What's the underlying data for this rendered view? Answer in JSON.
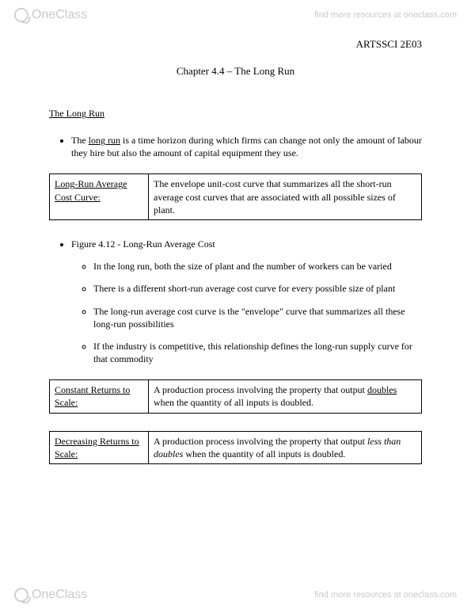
{
  "watermark": {
    "brand": "OneClass",
    "link_text": "find more resources at oneclass.com"
  },
  "course_code": "ARTSSCI 2E03",
  "chapter_title": "Chapter 4.4 – The Long Run",
  "section_heading": "The Long Run",
  "bullets": {
    "b1_pre": "The ",
    "b1_u": "long run",
    "b1_post": " is a time horizon during which firms can change not only the amount of labour they hire but also the amount of capital equipment they use."
  },
  "def1": {
    "term": "Long-Run Average Cost Curve",
    "term_suffix": ":",
    "desc": "The envelope unit-cost curve that summarizes all the short-run average cost curves that are associated with all possible sizes of plant."
  },
  "fig_bullet": "Figure 4.12 - Long-Run Average Cost",
  "sub": {
    "s1": "In the long run, both the size of plant and the number of workers can be varied",
    "s2": "There is a different short-run average cost curve for every possible size of plant",
    "s3": "The long-run average cost curve is the \"envelope\" curve that summarizes all these long-run possibilities",
    "s4": "If the industry is competitive, this relationship defines the long-run supply curve for that commodity"
  },
  "def2": {
    "term": "Constant Returns to Scale",
    "term_suffix": ":",
    "desc_pre": "A production process involving the property that output ",
    "desc_u": "doubles",
    "desc_post": " when the quantity of all inputs is doubled."
  },
  "def3": {
    "term": "Decreasing Returns to Scale",
    "term_suffix": ":",
    "desc_pre": "A production process involving the property that output ",
    "desc_i": "less than doubles",
    "desc_post": " when the quantity of all inputs is doubled."
  }
}
